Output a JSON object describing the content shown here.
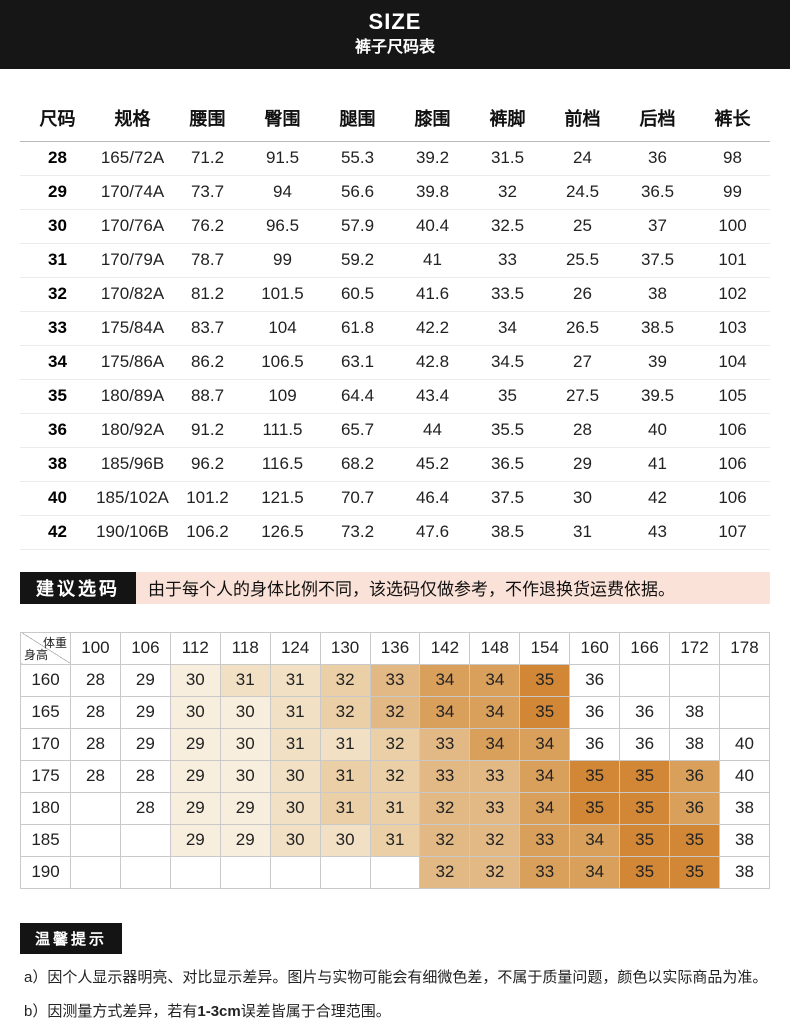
{
  "header": {
    "title": "SIZE",
    "subtitle": "裤子尺码表"
  },
  "size_table": {
    "columns": [
      "尺码",
      "规格",
      "腰围",
      "臀围",
      "腿围",
      "膝围",
      "裤脚",
      "前档",
      "后档",
      "裤长"
    ],
    "rows": [
      [
        "28",
        "165/72A",
        "71.2",
        "91.5",
        "55.3",
        "39.2",
        "31.5",
        "24",
        "36",
        "98"
      ],
      [
        "29",
        "170/74A",
        "73.7",
        "94",
        "56.6",
        "39.8",
        "32",
        "24.5",
        "36.5",
        "99"
      ],
      [
        "30",
        "170/76A",
        "76.2",
        "96.5",
        "57.9",
        "40.4",
        "32.5",
        "25",
        "37",
        "100"
      ],
      [
        "31",
        "170/79A",
        "78.7",
        "99",
        "59.2",
        "41",
        "33",
        "25.5",
        "37.5",
        "101"
      ],
      [
        "32",
        "170/82A",
        "81.2",
        "101.5",
        "60.5",
        "41.6",
        "33.5",
        "26",
        "38",
        "102"
      ],
      [
        "33",
        "175/84A",
        "83.7",
        "104",
        "61.8",
        "42.2",
        "34",
        "26.5",
        "38.5",
        "103"
      ],
      [
        "34",
        "175/86A",
        "86.2",
        "106.5",
        "63.1",
        "42.8",
        "34.5",
        "27",
        "39",
        "104"
      ],
      [
        "35",
        "180/89A",
        "88.7",
        "109",
        "64.4",
        "43.4",
        "35",
        "27.5",
        "39.5",
        "105"
      ],
      [
        "36",
        "180/92A",
        "91.2",
        "111.5",
        "65.7",
        "44",
        "35.5",
        "28",
        "40",
        "106"
      ],
      [
        "38",
        "185/96B",
        "96.2",
        "116.5",
        "68.2",
        "45.2",
        "36.5",
        "29",
        "41",
        "106"
      ],
      [
        "40",
        "185/102A",
        "101.2",
        "121.5",
        "70.7",
        "46.4",
        "37.5",
        "30",
        "42",
        "106"
      ],
      [
        "42",
        "190/106B",
        "106.2",
        "126.5",
        "73.2",
        "47.6",
        "38.5",
        "31",
        "43",
        "107"
      ]
    ]
  },
  "suggestion": {
    "badge": "建议选码",
    "text": "由于每个人的身体比例不同，该选码仅做参考，不作退换货运费依据。",
    "badge_bg": "#141414",
    "strip_bg": "#fbe2d8"
  },
  "matrix": {
    "corner": {
      "top": "体重",
      "bottom": "身高"
    },
    "weights": [
      "100",
      "106",
      "112",
      "118",
      "124",
      "130",
      "136",
      "142",
      "148",
      "154",
      "160",
      "166",
      "172",
      "178"
    ],
    "heights": [
      "160",
      "165",
      "170",
      "175",
      "180",
      "185",
      "190"
    ],
    "cells": [
      [
        "28",
        "29",
        "30",
        "31",
        "31",
        "32",
        "33",
        "34",
        "34",
        "35",
        "36",
        "",
        "",
        ""
      ],
      [
        "28",
        "29",
        "30",
        "30",
        "31",
        "32",
        "32",
        "34",
        "34",
        "35",
        "36",
        "36",
        "38",
        ""
      ],
      [
        "28",
        "29",
        "29",
        "30",
        "31",
        "31",
        "32",
        "33",
        "34",
        "34",
        "36",
        "36",
        "38",
        "40"
      ],
      [
        "28",
        "28",
        "29",
        "30",
        "30",
        "31",
        "32",
        "33",
        "33",
        "34",
        "35",
        "35",
        "36",
        "40"
      ],
      [
        "",
        "28",
        "29",
        "29",
        "30",
        "31",
        "31",
        "32",
        "33",
        "34",
        "35",
        "35",
        "36",
        "38"
      ],
      [
        "",
        "",
        "29",
        "29",
        "30",
        "30",
        "31",
        "32",
        "32",
        "33",
        "34",
        "35",
        "35",
        "38"
      ],
      [
        "",
        "",
        "",
        "",
        "",
        "",
        "",
        "32",
        "32",
        "33",
        "34",
        "35",
        "35",
        "38"
      ]
    ],
    "cell_colors": [
      [
        "",
        "",
        "l1",
        "l2",
        "l2",
        "m1",
        "m2",
        "o1",
        "o1",
        "o2",
        "",
        "",
        "",
        ""
      ],
      [
        "",
        "",
        "l1",
        "l1",
        "l2",
        "m1",
        "m2",
        "o1",
        "o1",
        "o2",
        "",
        "",
        "",
        ""
      ],
      [
        "",
        "",
        "l1",
        "l1",
        "l2",
        "l2",
        "m1",
        "m2",
        "o1",
        "o1",
        "",
        "",
        "",
        ""
      ],
      [
        "",
        "",
        "l1",
        "l1",
        "l2",
        "m1",
        "m1",
        "m2",
        "m2",
        "o1",
        "o2",
        "o2",
        "o1",
        ""
      ],
      [
        "",
        "",
        "l1",
        "l1",
        "l2",
        "m1",
        "m1",
        "m2",
        "m2",
        "o1",
        "o2",
        "o2",
        "o1",
        ""
      ],
      [
        "",
        "",
        "l1",
        "l1",
        "l2",
        "l2",
        "m1",
        "m2",
        "m2",
        "o1",
        "o1",
        "o2",
        "o2",
        ""
      ],
      [
        "",
        "",
        "",
        "",
        "",
        "",
        "",
        "m2",
        "m2",
        "o1",
        "o1",
        "o2",
        "o2",
        ""
      ]
    ],
    "palette": {
      "l1": "#f8eedd",
      "l2": "#f2e0c4",
      "m1": "#ebcfa6",
      "m2": "#e2b884",
      "o1": "#d9a05c",
      "o2": "#d28736"
    }
  },
  "tips": {
    "badge": "温馨提示",
    "notes": [
      {
        "prefix": "a）",
        "text": "因个人显示器明亮、对比显示差异。图片与实物可能会有细微色差，不属于质量问题，颜色以实际商品为准。"
      },
      {
        "prefix": "b）",
        "pre": "因测量方式差异，若有",
        "bold": "1-3cm",
        "post": "误差皆属于合理范围。"
      }
    ]
  }
}
